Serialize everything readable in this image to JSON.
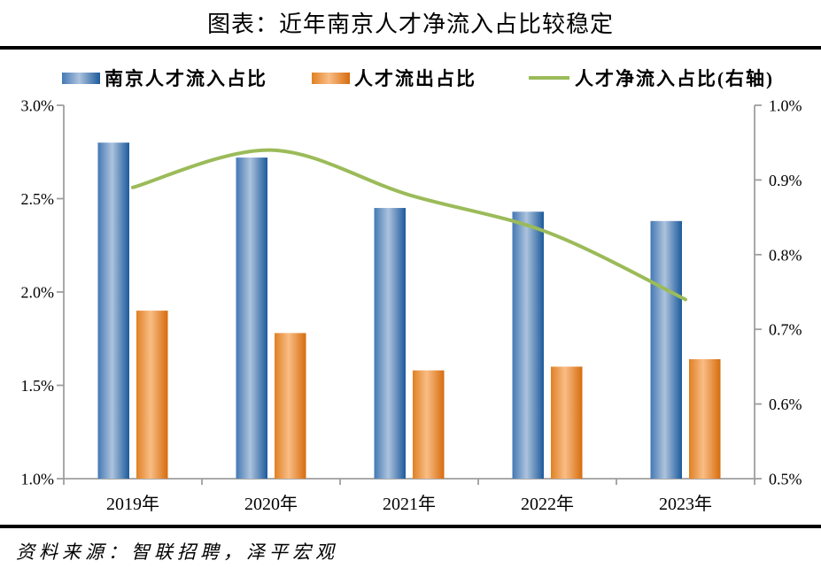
{
  "title": "图表：近年南京人才净流入占比较稳定",
  "source": "资料来源：智联招聘，泽平宏观",
  "legend": [
    {
      "label": "南京人才流入占比",
      "marker": "bar-blue"
    },
    {
      "label": "人才流出占比",
      "marker": "bar-orange"
    },
    {
      "label": "人才净流入占比(右轴)",
      "marker": "line-green"
    }
  ],
  "chart_data": {
    "type": "bar",
    "subtype": "dual-axis bar + smoothed line combo",
    "title": "图表：近年南京人才净流入占比较稳定",
    "categories": [
      "2019年",
      "2020年",
      "2021年",
      "2022年",
      "2023年"
    ],
    "series": [
      {
        "name": "南京人才流入占比",
        "type": "bar",
        "axis": "left",
        "values": [
          2.8,
          2.72,
          2.45,
          2.43,
          2.38
        ],
        "unit": "%"
      },
      {
        "name": "人才流出占比",
        "type": "bar",
        "axis": "left",
        "values": [
          1.9,
          1.78,
          1.58,
          1.6,
          1.64
        ],
        "unit": "%"
      },
      {
        "name": "人才净流入占比(右轴)",
        "type": "line",
        "axis": "right",
        "values": [
          0.89,
          0.94,
          0.88,
          0.83,
          0.74
        ],
        "unit": "%",
        "smoothed": true
      }
    ],
    "left_axis": {
      "min": 1.0,
      "max": 3.0,
      "tick_labels": [
        "3.0%",
        "2.5%",
        "2.0%",
        "1.5%",
        "1.0%"
      ]
    },
    "right_axis": {
      "min": 0.5,
      "max": 1.0,
      "tick_labels": [
        "1.0%",
        "0.9%",
        "0.8%",
        "0.7%",
        "0.6%",
        "0.5%"
      ]
    },
    "grid": "off",
    "legend_position": "top"
  },
  "colors": {
    "bar_blue_start": "#4478b4",
    "bar_blue_mid": "#adc3dd",
    "bar_blue_end": "#1c5a9c",
    "bar_orange_start": "#e08024",
    "bar_orange_mid": "#f9bd85",
    "bar_orange_end": "#d66c0e",
    "line_green": "#9bbb59",
    "axis_gray": "#9e9e9e",
    "text_black": "#000000"
  }
}
